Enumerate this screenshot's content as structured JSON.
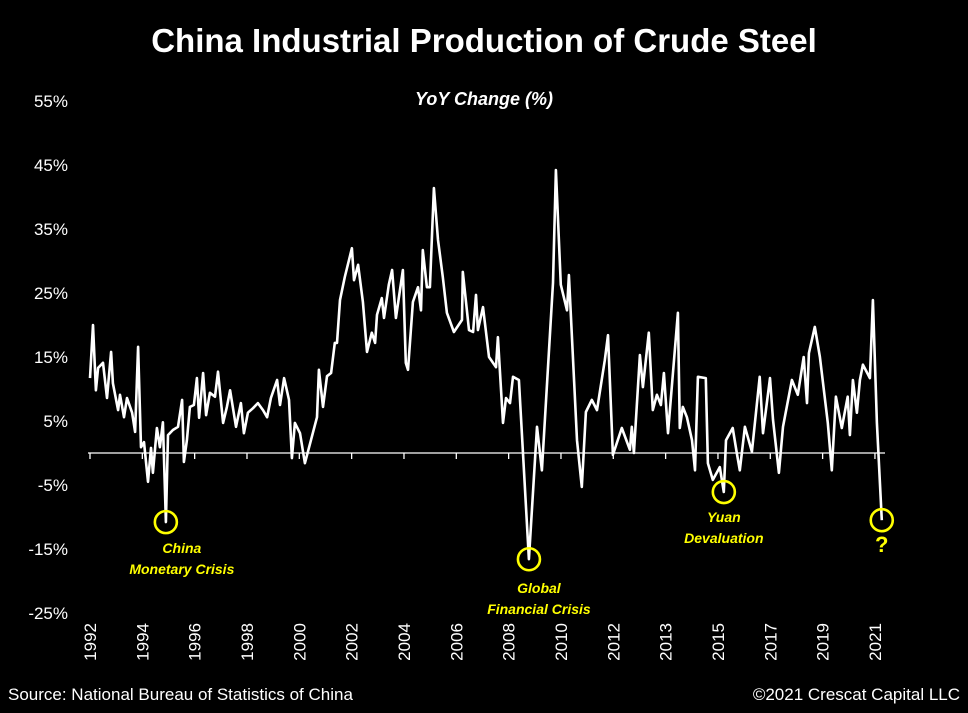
{
  "chart_data": {
    "type": "line",
    "title": "China Industrial Production of Crude Steel",
    "subtitle": "YoY Change (%)",
    "xlabel": "",
    "ylabel": "",
    "ylim": [
      -25,
      55
    ],
    "xlim": [
      1992,
      2021.45
    ],
    "y_ticks": [
      "55%",
      "45%",
      "35%",
      "25%",
      "15%",
      "5%",
      "-5%",
      "-15%",
      "-25%"
    ],
    "y_tick_values": [
      55,
      45,
      35,
      25,
      15,
      5,
      -5,
      -15,
      -25
    ],
    "x_tick_labels": [
      "1992",
      "1994",
      "1996",
      "1998",
      "2000",
      "2002",
      "2004",
      "2006",
      "2008",
      "2010",
      "2012",
      "2013",
      "2015",
      "2017",
      "2019",
      "2021"
    ],
    "grid": false,
    "zero_line": true,
    "line_color": "#ffffff",
    "annotation_color": "#ffff00",
    "series": [
      {
        "points": [
          [
            1992.0,
            11.7
          ],
          [
            1992.11,
            20.0
          ],
          [
            1992.22,
            9.8
          ],
          [
            1992.3,
            13.3
          ],
          [
            1992.48,
            14.1
          ],
          [
            1992.63,
            8.6
          ],
          [
            1992.78,
            15.8
          ],
          [
            1992.85,
            10.9
          ],
          [
            1993.04,
            6.7
          ],
          [
            1993.11,
            9.1
          ],
          [
            1993.26,
            5.6
          ],
          [
            1993.37,
            8.6
          ],
          [
            1993.56,
            6.3
          ],
          [
            1993.67,
            3.3
          ],
          [
            1993.78,
            16.6
          ],
          [
            1993.89,
            0.9
          ],
          [
            1994.0,
            1.7
          ],
          [
            1994.15,
            -4.5
          ],
          [
            1994.26,
            0.8
          ],
          [
            1994.33,
            -3.1
          ],
          [
            1994.48,
            3.9
          ],
          [
            1994.59,
            0.9
          ],
          [
            1994.7,
            4.8
          ],
          [
            1994.81,
            -10.8
          ],
          [
            1994.89,
            2.8
          ],
          [
            1995.07,
            3.6
          ],
          [
            1995.26,
            4.1
          ],
          [
            1995.41,
            8.3
          ],
          [
            1995.48,
            -1.4
          ],
          [
            1995.59,
            2.0
          ],
          [
            1995.7,
            7.2
          ],
          [
            1995.85,
            7.5
          ],
          [
            1995.96,
            11.7
          ],
          [
            1996.04,
            5.5
          ],
          [
            1996.19,
            12.5
          ],
          [
            1996.3,
            5.9
          ],
          [
            1996.44,
            9.4
          ],
          [
            1996.63,
            8.8
          ],
          [
            1996.74,
            12.7
          ],
          [
            1996.93,
            4.7
          ],
          [
            1997.07,
            7.2
          ],
          [
            1997.19,
            9.8
          ],
          [
            1997.41,
            4.1
          ],
          [
            1997.59,
            7.8
          ],
          [
            1997.7,
            3.1
          ],
          [
            1997.85,
            6.3
          ],
          [
            1998.04,
            7.0
          ],
          [
            1998.22,
            7.8
          ],
          [
            1998.41,
            6.7
          ],
          [
            1998.56,
            5.6
          ],
          [
            1998.7,
            8.6
          ],
          [
            1998.93,
            11.4
          ],
          [
            1999.04,
            7.5
          ],
          [
            1999.19,
            11.7
          ],
          [
            1999.37,
            8.3
          ],
          [
            1999.48,
            -0.8
          ],
          [
            1999.59,
            4.7
          ],
          [
            1999.78,
            3.1
          ],
          [
            1999.96,
            -1.6
          ],
          [
            2000.41,
            5.6
          ],
          [
            2000.48,
            13.0
          ],
          [
            2000.63,
            7.2
          ],
          [
            2000.78,
            12.0
          ],
          [
            2000.93,
            12.5
          ],
          [
            2001.07,
            17.2
          ],
          [
            2001.15,
            17.2
          ],
          [
            2001.26,
            23.9
          ],
          [
            2001.44,
            27.5
          ],
          [
            2001.7,
            32.0
          ],
          [
            2001.78,
            27.0
          ],
          [
            2001.93,
            29.4
          ],
          [
            2002.11,
            23.6
          ],
          [
            2002.26,
            15.8
          ],
          [
            2002.44,
            18.8
          ],
          [
            2002.56,
            17.2
          ],
          [
            2002.63,
            21.6
          ],
          [
            2002.81,
            24.2
          ],
          [
            2002.89,
            21.1
          ],
          [
            2003.07,
            26.3
          ],
          [
            2003.19,
            28.6
          ],
          [
            2003.33,
            21.1
          ],
          [
            2003.59,
            28.6
          ],
          [
            2003.7,
            14.1
          ],
          [
            2003.78,
            13.0
          ],
          [
            2003.96,
            23.6
          ],
          [
            2004.15,
            25.9
          ],
          [
            2004.26,
            22.3
          ],
          [
            2004.33,
            31.7
          ],
          [
            2004.48,
            25.9
          ],
          [
            2004.59,
            25.9
          ],
          [
            2004.74,
            41.4
          ],
          [
            2004.89,
            33.3
          ],
          [
            2005.07,
            27.5
          ],
          [
            2005.22,
            21.9
          ],
          [
            2005.48,
            18.9
          ],
          [
            2005.78,
            20.8
          ],
          [
            2005.81,
            28.3
          ],
          [
            2006.04,
            19.2
          ],
          [
            2006.19,
            18.9
          ],
          [
            2006.3,
            24.7
          ],
          [
            2006.37,
            19.2
          ],
          [
            2006.56,
            22.8
          ],
          [
            2006.78,
            15.0
          ],
          [
            2007.04,
            13.4
          ],
          [
            2007.11,
            18.1
          ],
          [
            2007.3,
            4.7
          ],
          [
            2007.41,
            8.6
          ],
          [
            2007.56,
            7.8
          ],
          [
            2007.67,
            11.9
          ],
          [
            2007.89,
            11.4
          ],
          [
            2008.26,
            -16.6
          ],
          [
            2008.56,
            4.1
          ],
          [
            2008.74,
            -2.7
          ],
          [
            2009.15,
            26.6
          ],
          [
            2009.26,
            44.2
          ],
          [
            2009.44,
            26.3
          ],
          [
            2009.67,
            22.3
          ],
          [
            2009.74,
            27.8
          ],
          [
            2010.04,
            2.0
          ],
          [
            2010.22,
            -5.3
          ],
          [
            2010.37,
            6.4
          ],
          [
            2010.59,
            8.3
          ],
          [
            2010.78,
            6.7
          ],
          [
            2011.07,
            14.5
          ],
          [
            2011.19,
            18.4
          ],
          [
            2011.37,
            -0.3
          ],
          [
            2011.7,
            3.9
          ],
          [
            2012.0,
            0.5
          ],
          [
            2012.07,
            4.1
          ],
          [
            2012.15,
            0.0
          ],
          [
            2012.37,
            15.3
          ],
          [
            2012.48,
            10.3
          ],
          [
            2012.7,
            18.8
          ],
          [
            2012.85,
            6.7
          ],
          [
            2013.0,
            9.1
          ],
          [
            2013.15,
            7.5
          ],
          [
            2013.26,
            12.5
          ],
          [
            2013.41,
            3.1
          ],
          [
            2013.78,
            21.9
          ],
          [
            2013.85,
            3.9
          ],
          [
            2013.96,
            7.2
          ],
          [
            2014.11,
            5.6
          ],
          [
            2014.3,
            2.0
          ],
          [
            2014.41,
            -2.7
          ],
          [
            2014.52,
            11.9
          ],
          [
            2014.81,
            11.7
          ],
          [
            2014.89,
            -1.6
          ],
          [
            2015.07,
            -4.2
          ],
          [
            2015.33,
            -2.2
          ],
          [
            2015.48,
            -6.1
          ],
          [
            2015.56,
            2.0
          ],
          [
            2015.81,
            3.9
          ],
          [
            2015.96,
            0.0
          ],
          [
            2016.07,
            -2.7
          ],
          [
            2016.26,
            4.1
          ],
          [
            2016.52,
            0.2
          ],
          [
            2016.81,
            11.9
          ],
          [
            2016.93,
            3.1
          ],
          [
            2017.19,
            11.7
          ],
          [
            2017.3,
            5.2
          ],
          [
            2017.52,
            -3.1
          ],
          [
            2017.67,
            4.1
          ],
          [
            2018.0,
            11.4
          ],
          [
            2018.22,
            9.1
          ],
          [
            2018.44,
            15.0
          ],
          [
            2018.56,
            7.8
          ],
          [
            2018.63,
            15.6
          ],
          [
            2018.85,
            19.7
          ],
          [
            2019.04,
            15.0
          ],
          [
            2019.33,
            4.7
          ],
          [
            2019.48,
            -2.7
          ],
          [
            2019.63,
            8.8
          ],
          [
            2019.85,
            3.9
          ],
          [
            2020.07,
            8.8
          ],
          [
            2020.15,
            2.8
          ],
          [
            2020.26,
            11.4
          ],
          [
            2020.41,
            6.3
          ],
          [
            2020.52,
            11.4
          ],
          [
            2020.63,
            13.8
          ],
          [
            2020.89,
            11.7
          ],
          [
            2021.0,
            23.9
          ],
          [
            2021.15,
            4.7
          ],
          [
            2021.33,
            -10.5
          ]
        ]
      }
    ],
    "annotations": [
      {
        "lines": [
          "China",
          "Monetary Crisis"
        ],
        "point": [
          1994.81,
          -10.8
        ]
      },
      {
        "lines": [
          "Global",
          "Financial Crisis"
        ],
        "point": [
          2008.26,
          -16.6
        ]
      },
      {
        "lines": [
          "Yuan",
          "Devaluation"
        ],
        "point": [
          2015.48,
          -6.1
        ]
      },
      {
        "lines": [
          "?"
        ],
        "point": [
          2021.33,
          -10.5
        ]
      }
    ]
  },
  "footer": {
    "source": "Source: National Bureau of Statistics of China",
    "copyright": "©2021 Crescat Capital LLC"
  }
}
